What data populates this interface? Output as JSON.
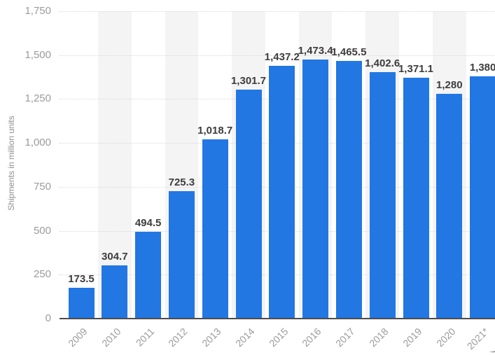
{
  "chart_data": {
    "type": "bar",
    "title": "",
    "categories": [
      "2009",
      "2010",
      "2011",
      "2012",
      "2013",
      "2014",
      "2015",
      "2016",
      "2017",
      "2018",
      "2019",
      "2020",
      "2021*"
    ],
    "values": [
      173.5,
      304.7,
      494.5,
      725.3,
      1018.7,
      1301.7,
      1437.2,
      1473.4,
      1465.5,
      1402.6,
      1371.1,
      1280,
      1380
    ],
    "value_labels": [
      "173.5",
      "304.7",
      "494.5",
      "725.3",
      "1,018.7",
      "1,301.7",
      "1,437.2",
      "1,473.4",
      "1,465.5",
      "1,402.6",
      "1,371.1",
      "1,280",
      "1,380"
    ],
    "xlabel": "",
    "ylabel": "Shipments in million units",
    "y_ticks": [
      1750,
      1500,
      1250,
      1000,
      750,
      500,
      250,
      0
    ],
    "y_tick_labels": [
      "1,750",
      "1,500",
      "1,250",
      "1,000",
      "750",
      "500",
      "250",
      "0"
    ],
    "ylim": [
      0,
      1750
    ],
    "grid": "horizontal-dotted",
    "legend": "none",
    "background_stripes_behind": [
      "2010",
      "2012",
      "2014",
      "2016",
      "2018",
      "2020"
    ],
    "colors": {
      "bar": "#2277e3",
      "stripe": "#f4f4f4",
      "gridline": "#d9d9d9",
      "axis_line": "#4d4d4d",
      "tick_text": "#9b9b9b",
      "value_text": "#3d3d3d",
      "axis_title_text": "#8f8f8f"
    }
  }
}
